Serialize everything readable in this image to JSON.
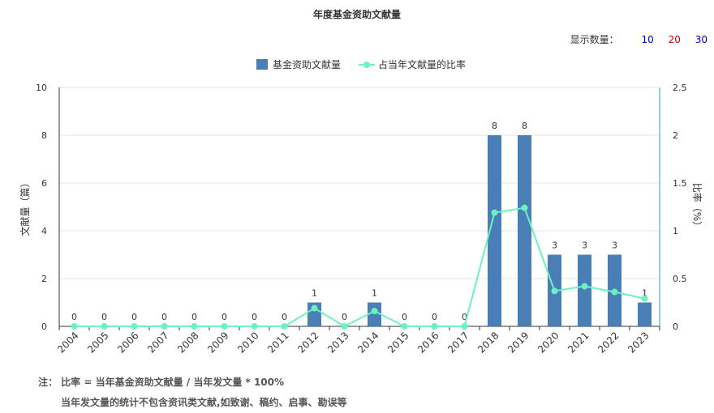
{
  "title": "年度基金资助文献量",
  "display_count": {
    "label": "显示数量：",
    "options": [
      {
        "value": "10",
        "color": "#0000cc"
      },
      {
        "value": "20",
        "color": "#cc0000"
      },
      {
        "value": "30",
        "color": "#0000cc"
      }
    ]
  },
  "notes": {
    "line1": "注： 比率 = 当年基金资助文献量 / 当年发文量 * 100%",
    "line2": "当年发文量的统计不包含资讯类文献,如致谢、稿约、启事、勘误等"
  },
  "colors": {
    "bar": "#4a7fb5",
    "line": "#6ef0c0",
    "axis_right": "#2a9dc0"
  },
  "chart_data": {
    "type": "bar+line",
    "categories": [
      "2004",
      "2005",
      "2006",
      "2007",
      "2008",
      "2009",
      "2010",
      "2011",
      "2012",
      "2013",
      "2014",
      "2015",
      "2016",
      "2017",
      "2018",
      "2019",
      "2020",
      "2021",
      "2022",
      "2023"
    ],
    "series": [
      {
        "name": "基金资助文献量",
        "type": "bar",
        "axis": "left",
        "values": [
          0,
          0,
          0,
          0,
          0,
          0,
          0,
          0,
          1,
          0,
          1,
          0,
          0,
          0,
          8,
          8,
          3,
          3,
          3,
          1
        ]
      },
      {
        "name": "占当年文献量的比率",
        "type": "line",
        "axis": "right",
        "values": [
          0,
          0,
          0,
          0,
          0,
          0,
          0,
          0,
          0.19,
          0,
          0.16,
          0,
          0,
          0,
          1.19,
          1.24,
          0.37,
          0.42,
          0.36,
          0.29
        ]
      }
    ],
    "ylabel_left": "文献量（篇）",
    "ylabel_right": "比率（%）",
    "ylim_left": [
      0,
      10
    ],
    "ylim_right": [
      0,
      2.5
    ],
    "yticks_left": [
      "0",
      "2",
      "4",
      "6",
      "8",
      "10"
    ],
    "yticks_right": [
      "0",
      "0.5",
      "1",
      "1.5",
      "2",
      "2.5"
    ],
    "legend_position": "top-center",
    "grid": true
  }
}
